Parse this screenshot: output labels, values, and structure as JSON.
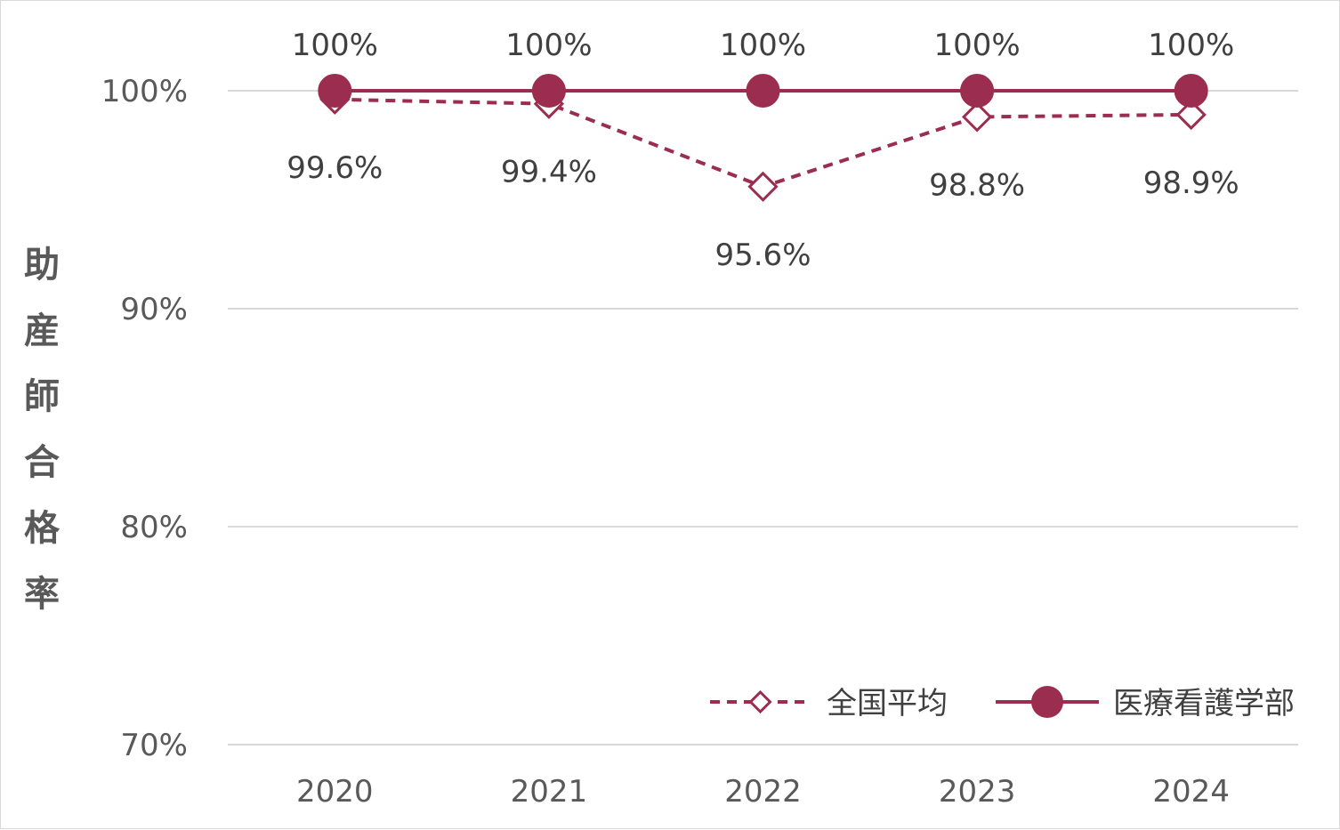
{
  "chart_data": {
    "type": "line",
    "categories": [
      "2020",
      "2021",
      "2022",
      "2023",
      "2024"
    ],
    "series": [
      {
        "name": "全国平均",
        "values": [
          99.6,
          99.4,
          95.6,
          98.8,
          98.9
        ],
        "labels": [
          "99.6%",
          "99.4%",
          "95.6%",
          "98.8%",
          "98.9%"
        ],
        "color": "#9b2d50",
        "line_style": "dashed",
        "marker": "hollow-diamond"
      },
      {
        "name": "医療看護学部",
        "values": [
          100,
          100,
          100,
          100,
          100
        ],
        "labels": [
          "100%",
          "100%",
          "100%",
          "100%",
          "100%"
        ],
        "color": "#9b2d50",
        "line_style": "solid",
        "marker": "filled-circle"
      }
    ],
    "ylabel": "助産師合格率",
    "ylim": [
      70,
      100
    ],
    "yticks": [
      "70%",
      "80%",
      "90%",
      "100%"
    ],
    "grid": true,
    "legend_position": "bottom-right"
  }
}
